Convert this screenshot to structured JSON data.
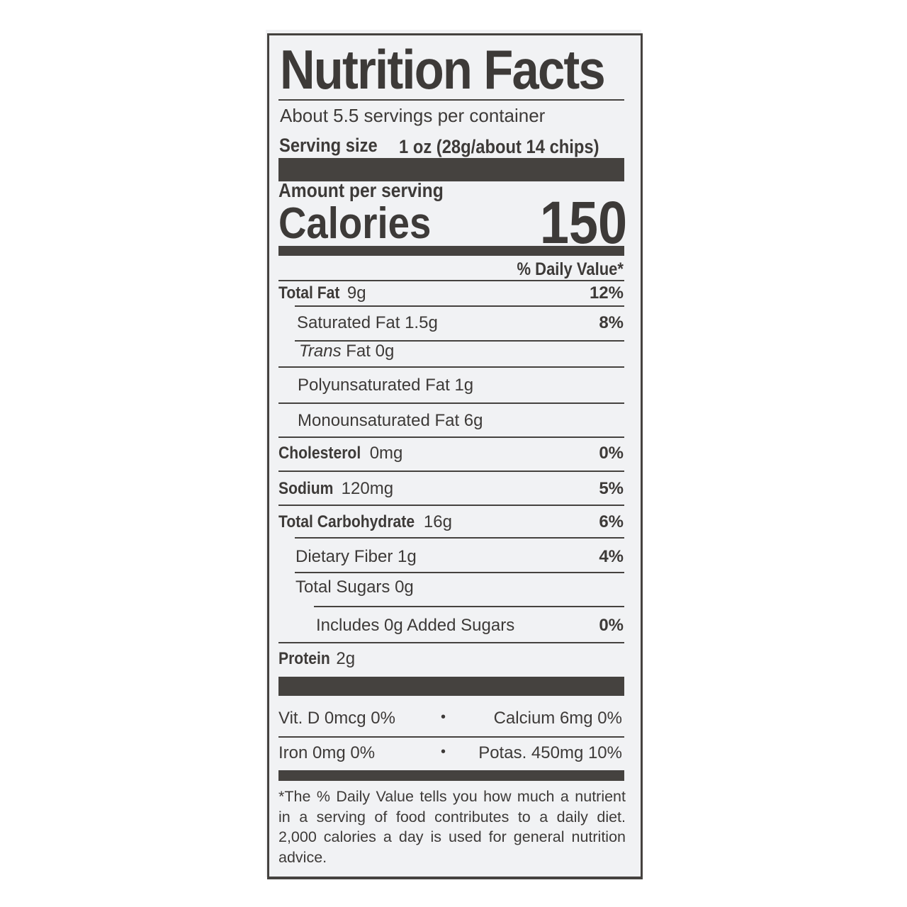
{
  "title": "Nutrition Facts",
  "servings_per_container": "About 5.5 servings per container",
  "serving_size_label": "Serving size",
  "serving_size_value": "1 oz (28g/about 14 chips)",
  "amount_per_serving": "Amount per serving",
  "calories_label": "Calories",
  "calories_value": "150",
  "daily_value_header": "% Daily Value*",
  "nutrients": [
    {
      "name": "Total Fat",
      "amount": "9g",
      "dv": "12%"
    },
    {
      "name": "Saturated Fat 1.5g",
      "dv": "8%"
    },
    {
      "name_italic": "Trans",
      "name": "Fat 0g"
    },
    {
      "name": "Polyunsaturated Fat 1g"
    },
    {
      "name": "Monounsaturated Fat 6g"
    },
    {
      "name": "Cholesterol",
      "amount": "0mg",
      "dv": "0%"
    },
    {
      "name": "Sodium",
      "amount": "120mg",
      "dv": "5%"
    },
    {
      "name": "Total Carbohydrate",
      "amount": "16g",
      "dv": "6%"
    },
    {
      "name": "Dietary Fiber 1g",
      "dv": "4%"
    },
    {
      "name": "Total Sugars 0g"
    },
    {
      "name": "Includes 0g Added Sugars",
      "dv": "0%"
    },
    {
      "name": "Protein",
      "amount": "2g"
    }
  ],
  "vitamins": [
    {
      "left": "Vit. D 0mcg 0%",
      "right": "Calcium 6mg 0%"
    },
    {
      "left": "Iron 0mg 0%",
      "right": "Potas. 450mg 10%"
    }
  ],
  "separator": "•",
  "footnote": "*The % Daily Value tells you how much a nutrient in a serving of food contributes to a daily diet. 2,000 calories a day is used for general nutrition advice.",
  "colors": {
    "ink": "#3d3a38",
    "background": "#f1f2f4"
  }
}
